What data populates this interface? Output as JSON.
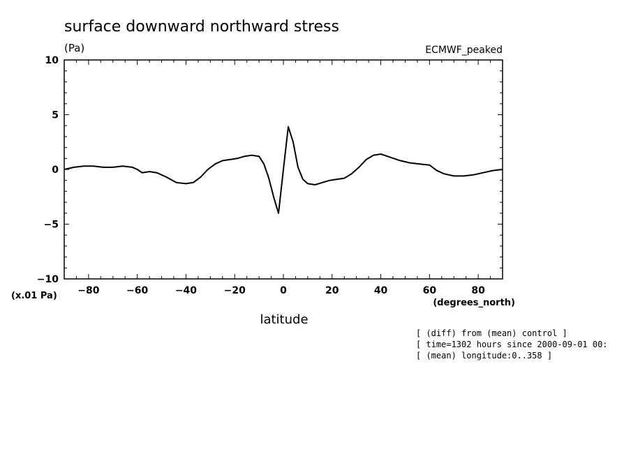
{
  "chart_data": {
    "type": "line",
    "title": "surface downward northward stress",
    "units_label": "(Pa)",
    "series_label": "ECMWF_peaked",
    "y_scale_label": "(x.01 Pa)",
    "xlabel": "latitude",
    "x_units_label": "(degrees_north)",
    "xlim": [
      -90,
      90
    ],
    "ylim": [
      -10,
      10
    ],
    "x_ticks": [
      -80,
      -60,
      -40,
      -20,
      0,
      20,
      40,
      60,
      80
    ],
    "x_tick_labels": [
      "−80",
      "−60",
      "−40",
      "−20",
      "0",
      "20",
      "40",
      "60",
      "80"
    ],
    "y_ticks": [
      -10,
      -5,
      0,
      5,
      10
    ],
    "y_tick_labels": [
      "−10",
      "−5",
      "0",
      "5",
      "10"
    ],
    "grid": false,
    "series": [
      {
        "color": "#000000",
        "x": [
          -90,
          -86,
          -82,
          -78,
          -74,
          -70,
          -66,
          -62,
          -60,
          -58,
          -55,
          -52,
          -48,
          -44,
          -40,
          -37,
          -34,
          -31,
          -28,
          -25,
          -22,
          -19,
          -16,
          -13,
          -10,
          -8,
          -6,
          -4,
          -2,
          0,
          2,
          4,
          6,
          8,
          10,
          13,
          16,
          19,
          22,
          25,
          28,
          31,
          34,
          37,
          40,
          44,
          48,
          52,
          56,
          60,
          63,
          66,
          70,
          74,
          78,
          82,
          86,
          90
        ],
        "y": [
          0.0,
          0.2,
          0.3,
          0.3,
          0.2,
          0.2,
          0.3,
          0.2,
          0.0,
          -0.3,
          -0.2,
          -0.3,
          -0.7,
          -1.2,
          -1.3,
          -1.2,
          -0.7,
          0.0,
          0.5,
          0.8,
          0.9,
          1.0,
          1.2,
          1.3,
          1.2,
          0.5,
          -0.8,
          -2.5,
          -4.0,
          0.0,
          3.9,
          2.5,
          0.2,
          -0.9,
          -1.3,
          -1.4,
          -1.2,
          -1.0,
          -0.9,
          -0.8,
          -0.4,
          0.2,
          0.9,
          1.3,
          1.4,
          1.1,
          0.8,
          0.6,
          0.5,
          0.4,
          -0.1,
          -0.4,
          -0.6,
          -0.6,
          -0.5,
          -0.3,
          -0.1,
          0.0
        ]
      }
    ]
  },
  "footnotes": [
    "[ (diff) from (mean) control ]",
    "[ time=1302 hours since 2000-09-01 00:",
    "[ (mean) longitude:0..358 ]"
  ]
}
